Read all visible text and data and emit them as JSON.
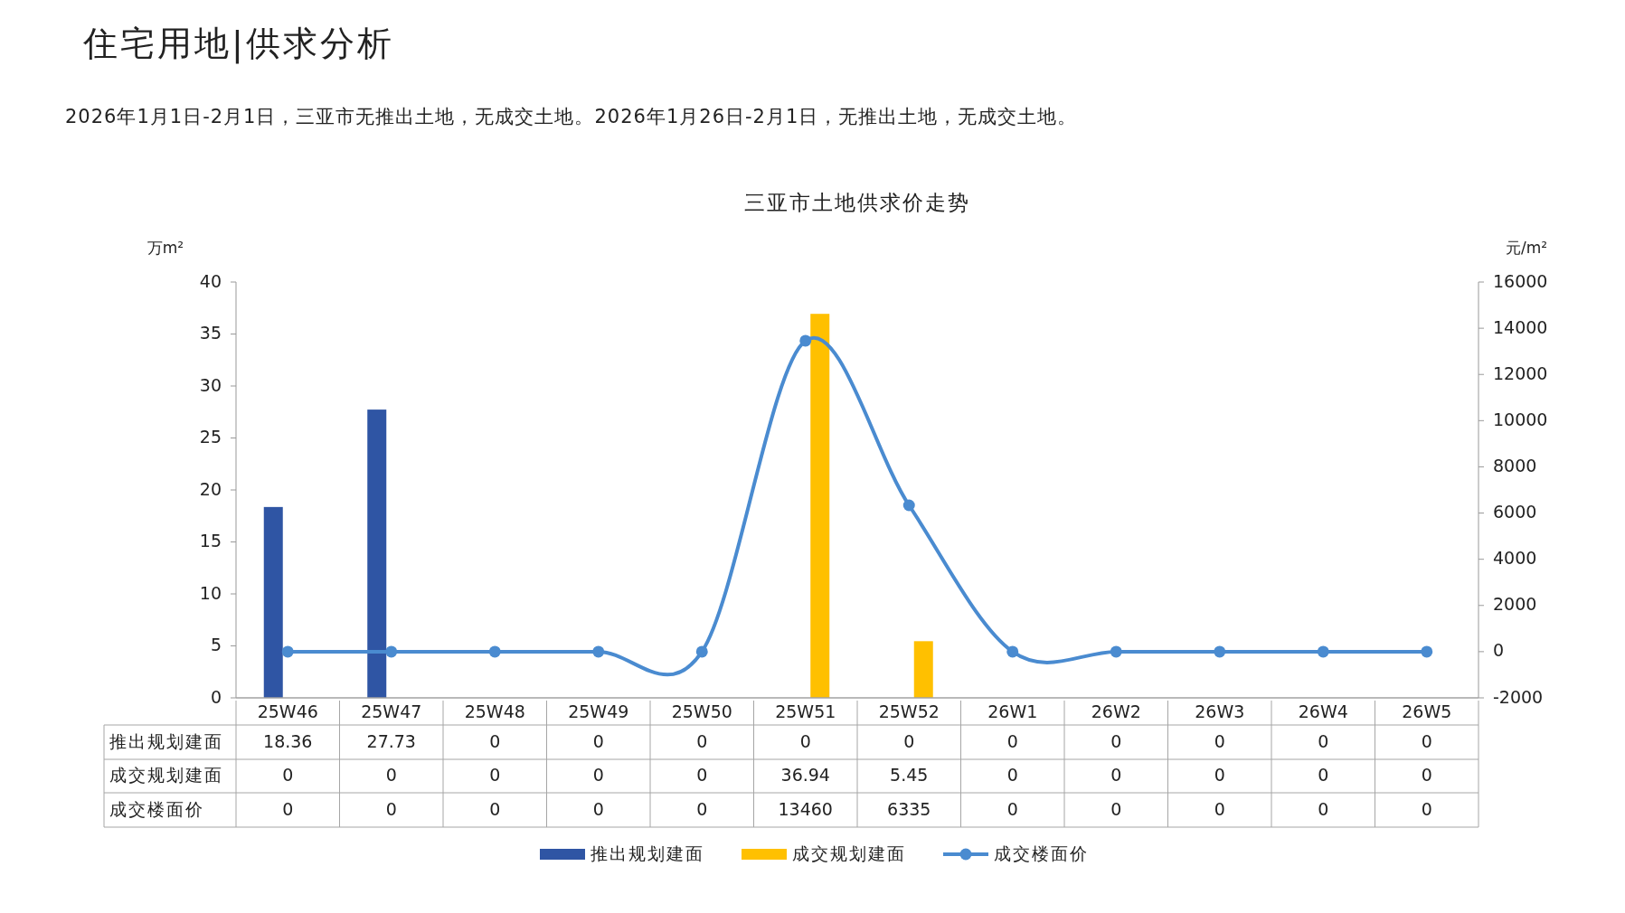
{
  "chart_data": {
    "type": "bar",
    "title": "三亚市土地供求价走势",
    "subtitle": "2026年1月1日-2月1日，三亚市无推出土地，无成交土地。2026年1月26日-2月1日，无推出土地，无成交土地。",
    "annotations": [
      "住宅用地|供求分析"
    ],
    "ylabel": "万m²",
    "y2label": "元/m²",
    "categories": [
      "25W46",
      "25W47",
      "25W48",
      "25W49",
      "25W50",
      "25W51",
      "25W52",
      "26W1",
      "26W2",
      "26W3",
      "26W4",
      "26W5"
    ],
    "series": [
      {
        "name": "推出规划建面",
        "color": "#2f55a4",
        "values": [
          18.36,
          27.73,
          0,
          0,
          0,
          0,
          0,
          0,
          0,
          0,
          0,
          0
        ]
      },
      {
        "name": "成交规划建面",
        "color": "#ffc000",
        "values": [
          0,
          0,
          0,
          0,
          0,
          36.94,
          5.45,
          0,
          0,
          0,
          0,
          0
        ]
      },
      {
        "name": "成交楼面价",
        "type": "line",
        "axis": "y2",
        "marker": "circle",
        "color": "#4a8bd0",
        "values": [
          0,
          0,
          0,
          0,
          0,
          13460,
          6335,
          0,
          0,
          0,
          0,
          0
        ]
      }
    ],
    "ylim": [
      0,
      40
    ],
    "yticks": [
      0,
      5,
      10,
      15,
      20,
      25,
      30,
      35,
      40
    ],
    "y2lim": [
      -2000,
      16000
    ],
    "y2ticks": [
      -2000,
      0,
      2000,
      4000,
      6000,
      8000,
      10000,
      12000,
      14000,
      16000
    ],
    "data_labels": true,
    "legend": "bottom",
    "grid": false
  }
}
